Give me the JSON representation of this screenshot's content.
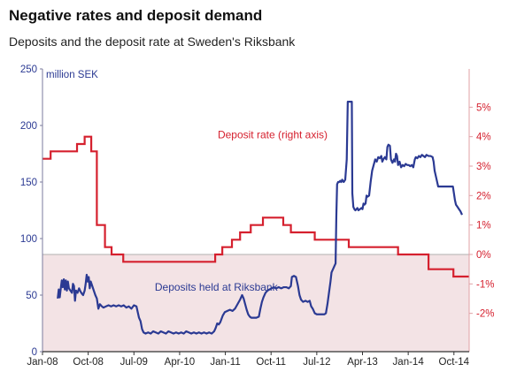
{
  "chart_data": {
    "type": "line",
    "title": "Negative rates and deposit demand",
    "subtitle": "Deposits and the deposit rate at Sweden's Riksbank",
    "left_axis": {
      "unit_label": "million SEK",
      "ticks": [
        0,
        50,
        100,
        150,
        200,
        250
      ],
      "tick_labels": [
        "0",
        "50",
        "100",
        "150",
        "200",
        "250"
      ],
      "range": [
        0,
        250
      ],
      "color": "#2b3a93"
    },
    "right_axis": {
      "ticks": [
        -2,
        -1,
        0,
        1,
        2,
        3,
        4,
        5
      ],
      "tick_labels": [
        "-2%",
        "-1%",
        "0%",
        "1%",
        "2%",
        "3%",
        "4%",
        "5%"
      ],
      "range": [
        -3.3,
        6.3
      ],
      "color": "#d5202e"
    },
    "x_axis": {
      "tick_labels": [
        "Jan-08",
        "Oct-08",
        "Jul-09",
        "Apr-10",
        "Jan-11",
        "Oct-11",
        "Jul-12",
        "Apr-13",
        "Jan-14",
        "Oct-14"
      ],
      "tick_months": [
        0,
        9,
        18,
        27,
        36,
        45,
        54,
        63,
        72,
        81
      ],
      "range_months": [
        0,
        84
      ]
    },
    "negative_zone_fill": "#f3e3e5",
    "series": [
      {
        "name": "Deposits held at Riksbank",
        "axis": "left",
        "color": "#2b3a93",
        "label_text": "Deposits held at Riksbank",
        "points": [
          [
            3.0,
            47
          ],
          [
            3.2,
            55
          ],
          [
            3.4,
            48
          ],
          [
            3.6,
            56
          ],
          [
            3.8,
            63
          ],
          [
            4.0,
            57
          ],
          [
            4.2,
            64
          ],
          [
            4.4,
            55
          ],
          [
            4.6,
            63
          ],
          [
            4.8,
            54
          ],
          [
            5.0,
            62
          ],
          [
            5.2,
            56
          ],
          [
            5.5,
            54
          ],
          [
            5.8,
            52
          ],
          [
            6.0,
            60
          ],
          [
            6.2,
            58
          ],
          [
            6.4,
            45
          ],
          [
            6.6,
            54
          ],
          [
            6.9,
            52
          ],
          [
            7.2,
            56
          ],
          [
            7.5,
            53
          ],
          [
            7.8,
            51
          ],
          [
            8.0,
            50
          ],
          [
            8.3,
            54
          ],
          [
            8.5,
            60
          ],
          [
            8.7,
            68
          ],
          [
            8.9,
            62
          ],
          [
            9.1,
            66
          ],
          [
            9.3,
            56
          ],
          [
            9.5,
            62
          ],
          [
            9.8,
            58
          ],
          [
            10.1,
            54
          ],
          [
            10.4,
            50
          ],
          [
            10.7,
            47
          ],
          [
            11.0,
            38
          ],
          [
            11.3,
            42
          ],
          [
            11.7,
            40
          ],
          [
            12.0,
            39
          ],
          [
            12.5,
            40
          ],
          [
            13.0,
            41
          ],
          [
            13.5,
            40
          ],
          [
            14.0,
            41
          ],
          [
            14.5,
            40
          ],
          [
            15.0,
            41
          ],
          [
            15.5,
            40
          ],
          [
            16.0,
            41
          ],
          [
            16.5,
            39
          ],
          [
            17.0,
            40
          ],
          [
            17.5,
            38
          ],
          [
            18.0,
            41
          ],
          [
            18.5,
            40
          ],
          [
            19.0,
            30
          ],
          [
            19.3,
            27
          ],
          [
            19.6,
            20
          ],
          [
            19.9,
            17
          ],
          [
            20.3,
            16
          ],
          [
            20.8,
            17
          ],
          [
            21.3,
            16
          ],
          [
            21.8,
            18
          ],
          [
            22.3,
            17
          ],
          [
            22.8,
            16
          ],
          [
            23.3,
            18
          ],
          [
            23.8,
            17
          ],
          [
            24.3,
            16
          ],
          [
            24.8,
            18
          ],
          [
            25.3,
            17
          ],
          [
            25.8,
            16
          ],
          [
            26.3,
            17
          ],
          [
            26.8,
            16
          ],
          [
            27.3,
            17
          ],
          [
            27.8,
            16
          ],
          [
            28.3,
            18
          ],
          [
            28.8,
            17
          ],
          [
            29.3,
            16
          ],
          [
            29.8,
            17
          ],
          [
            30.3,
            16
          ],
          [
            30.8,
            17
          ],
          [
            31.3,
            16
          ],
          [
            31.8,
            17
          ],
          [
            32.3,
            16
          ],
          [
            32.8,
            17
          ],
          [
            33.3,
            16
          ],
          [
            33.8,
            18
          ],
          [
            34.1,
            21
          ],
          [
            34.4,
            25
          ],
          [
            34.7,
            24
          ],
          [
            35.0,
            26
          ],
          [
            35.5,
            32
          ],
          [
            35.9,
            35
          ],
          [
            36.4,
            36
          ],
          [
            36.9,
            37
          ],
          [
            37.4,
            36
          ],
          [
            37.9,
            38
          ],
          [
            38.4,
            42
          ],
          [
            38.9,
            46
          ],
          [
            39.3,
            50
          ],
          [
            39.6,
            47
          ],
          [
            39.9,
            42
          ],
          [
            40.2,
            37
          ],
          [
            40.5,
            33
          ],
          [
            40.8,
            31
          ],
          [
            41.1,
            30
          ],
          [
            41.6,
            30
          ],
          [
            42.1,
            30
          ],
          [
            42.6,
            31
          ],
          [
            42.9,
            38
          ],
          [
            43.2,
            44
          ],
          [
            43.5,
            48
          ],
          [
            43.9,
            52
          ],
          [
            44.3,
            54
          ],
          [
            44.7,
            55
          ],
          [
            45.1,
            56
          ],
          [
            45.5,
            57
          ],
          [
            46.0,
            56
          ],
          [
            46.5,
            57
          ],
          [
            47.0,
            56
          ],
          [
            47.5,
            57
          ],
          [
            48.0,
            57
          ],
          [
            48.5,
            56
          ],
          [
            48.9,
            58
          ],
          [
            49.1,
            66
          ],
          [
            49.5,
            67
          ],
          [
            49.9,
            66
          ],
          [
            50.3,
            58
          ],
          [
            50.6,
            50
          ],
          [
            50.9,
            46
          ],
          [
            51.3,
            44
          ],
          [
            51.8,
            45
          ],
          [
            52.2,
            44
          ],
          [
            52.6,
            45
          ],
          [
            52.9,
            40
          ],
          [
            53.2,
            38
          ],
          [
            53.6,
            34
          ],
          [
            54.0,
            33
          ],
          [
            54.5,
            33
          ],
          [
            55.0,
            33
          ],
          [
            55.5,
            33
          ],
          [
            55.8,
            34
          ],
          [
            56.1,
            42
          ],
          [
            56.4,
            52
          ],
          [
            56.7,
            62
          ],
          [
            56.9,
            70
          ],
          [
            57.1,
            72
          ],
          [
            57.3,
            74
          ],
          [
            57.5,
            76
          ],
          [
            57.7,
            78
          ],
          [
            57.85,
            120
          ],
          [
            58.0,
            148
          ],
          [
            58.2,
            150
          ],
          [
            58.4,
            150
          ],
          [
            58.6,
            151
          ],
          [
            58.8,
            150
          ],
          [
            59.0,
            152
          ],
          [
            59.3,
            150
          ],
          [
            59.6,
            152
          ],
          [
            59.9,
            170
          ],
          [
            60.1,
            221
          ],
          [
            60.6,
            221
          ],
          [
            60.9,
            221
          ],
          [
            61.0,
            140
          ],
          [
            61.2,
            128
          ],
          [
            61.4,
            126
          ],
          [
            61.6,
            125
          ],
          [
            61.8,
            126
          ],
          [
            62.0,
            127
          ],
          [
            62.2,
            125
          ],
          [
            62.5,
            126
          ],
          [
            62.8,
            127
          ],
          [
            63.0,
            126
          ],
          [
            63.2,
            131
          ],
          [
            63.4,
            130
          ],
          [
            63.6,
            131
          ],
          [
            63.8,
            138
          ],
          [
            64.0,
            137
          ],
          [
            64.3,
            138
          ],
          [
            64.6,
            150
          ],
          [
            64.9,
            160
          ],
          [
            65.2,
            165
          ],
          [
            65.5,
            170
          ],
          [
            65.8,
            168
          ],
          [
            66.1,
            172
          ],
          [
            66.4,
            171
          ],
          [
            66.7,
            173
          ],
          [
            66.9,
            168
          ],
          [
            67.1,
            170
          ],
          [
            67.4,
            172
          ],
          [
            67.7,
            170
          ],
          [
            67.9,
            181
          ],
          [
            68.1,
            183
          ],
          [
            68.4,
            182
          ],
          [
            68.6,
            170
          ],
          [
            68.9,
            167
          ],
          [
            69.2,
            170
          ],
          [
            69.4,
            168
          ],
          [
            69.6,
            175
          ],
          [
            69.8,
            173
          ],
          [
            70.0,
            165
          ],
          [
            70.3,
            168
          ],
          [
            70.6,
            163
          ],
          [
            70.9,
            165
          ],
          [
            71.2,
            164
          ],
          [
            71.5,
            166
          ],
          [
            71.8,
            165
          ],
          [
            72.1,
            165
          ],
          [
            72.4,
            164
          ],
          [
            72.7,
            165
          ],
          [
            73.0,
            163
          ],
          [
            73.3,
            170
          ],
          [
            73.5,
            172
          ],
          [
            73.8,
            171
          ],
          [
            74.1,
            173
          ],
          [
            74.4,
            172
          ],
          [
            74.7,
            174
          ],
          [
            75.0,
            173
          ],
          [
            75.3,
            172
          ],
          [
            75.6,
            174
          ],
          [
            76.0,
            173
          ],
          [
            76.4,
            173
          ],
          [
            76.8,
            172
          ],
          [
            77.0,
            168
          ],
          [
            77.2,
            160
          ],
          [
            77.4,
            156
          ],
          [
            77.6,
            152
          ],
          [
            77.9,
            146
          ],
          [
            78.3,
            146
          ],
          [
            78.8,
            146
          ],
          [
            79.3,
            146
          ],
          [
            79.8,
            146
          ],
          [
            80.3,
            146
          ],
          [
            80.8,
            146
          ],
          [
            81.0,
            140
          ],
          [
            81.2,
            134
          ],
          [
            81.4,
            130
          ],
          [
            81.7,
            128
          ],
          [
            82.0,
            126
          ],
          [
            82.3,
            124
          ],
          [
            82.6,
            121
          ]
        ]
      },
      {
        "name": "Deposit rate (right axis)",
        "axis": "right",
        "color": "#d5202e",
        "label_text": "Deposit rate (right axis)",
        "steps": [
          [
            0,
            3.25
          ],
          [
            1.6,
            3.5
          ],
          [
            6.8,
            3.75
          ],
          [
            8.3,
            4.0
          ],
          [
            9.6,
            3.5
          ],
          [
            10.7,
            1.0
          ],
          [
            12.3,
            0.25
          ],
          [
            13.6,
            0.0
          ],
          [
            15.9,
            -0.25
          ],
          [
            34.0,
            0.0
          ],
          [
            35.4,
            0.25
          ],
          [
            37.3,
            0.5
          ],
          [
            38.9,
            0.75
          ],
          [
            41.0,
            1.0
          ],
          [
            43.4,
            1.25
          ],
          [
            47.4,
            1.0
          ],
          [
            48.9,
            0.75
          ],
          [
            53.6,
            0.5
          ],
          [
            60.3,
            0.25
          ],
          [
            70.0,
            0.0
          ],
          [
            76.0,
            -0.5
          ],
          [
            80.9,
            -0.75
          ],
          [
            84.0,
            -0.75
          ]
        ]
      }
    ]
  }
}
